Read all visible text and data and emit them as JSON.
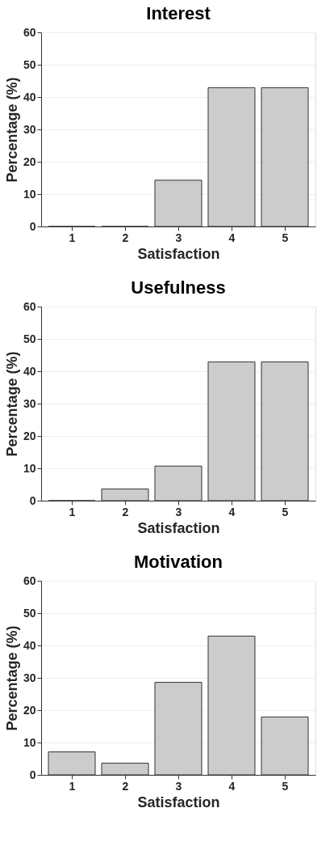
{
  "chart_data": [
    {
      "type": "bar",
      "title": "Interest",
      "xlabel": "Satisfaction",
      "ylabel": "Percentage (%)",
      "categories": [
        "1",
        "2",
        "3",
        "4",
        "5"
      ],
      "values": [
        0,
        0,
        14.3,
        42.9,
        42.9
      ],
      "color": "#cccccc",
      "ylim": [
        0,
        60
      ],
      "yticks": [
        0,
        10,
        20,
        30,
        40,
        50,
        60
      ],
      "grid": "y"
    },
    {
      "type": "bar",
      "title": "Usefulness",
      "xlabel": "Satisfaction",
      "ylabel": "Percentage (%)",
      "categories": [
        "1",
        "2",
        "3",
        "4",
        "5"
      ],
      "values": [
        0,
        3.6,
        10.7,
        42.9,
        42.9
      ],
      "color": "#cccccc",
      "ylim": [
        0,
        60
      ],
      "yticks": [
        0,
        10,
        20,
        30,
        40,
        50,
        60
      ],
      "grid": "y"
    },
    {
      "type": "bar",
      "title": "Motivation",
      "xlabel": "Satisfaction",
      "ylabel": "Percentage (%)",
      "categories": [
        "1",
        "2",
        "3",
        "4",
        "5"
      ],
      "values": [
        7.1,
        3.6,
        28.6,
        42.9,
        17.9
      ],
      "color": "#cccccc",
      "ylim": [
        0,
        60
      ],
      "yticks": [
        0,
        10,
        20,
        30,
        40,
        50,
        60
      ],
      "grid": "y"
    }
  ]
}
